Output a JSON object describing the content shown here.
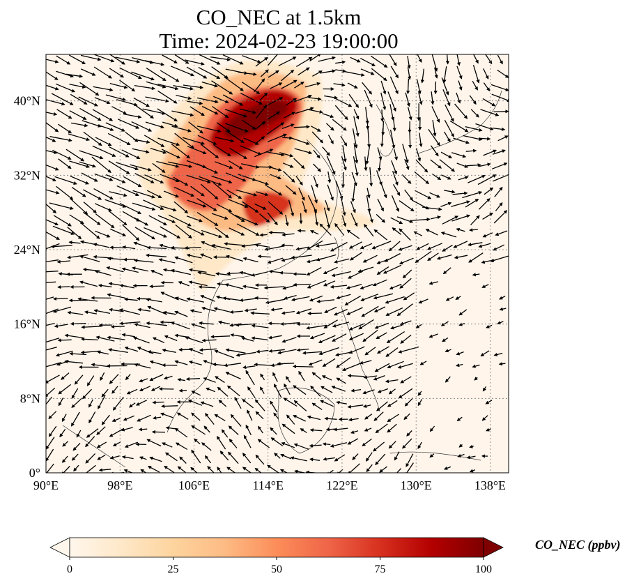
{
  "title_line1": "CO_NEC at 1.5km",
  "title_line2": "Time: 2024-02-23 19:00:00",
  "map": {
    "lon_range": [
      90,
      140
    ],
    "lat_range": [
      0,
      45
    ],
    "x_ticks": [
      "90°E",
      "98°E",
      "106°E",
      "114°E",
      "122°E",
      "130°E",
      "138°E"
    ],
    "y_ticks": [
      "0°",
      "8°N",
      "16°N",
      "24°N",
      "32°N",
      "40°N"
    ],
    "gridlines": "dotted",
    "colormap": "OrRd",
    "background_color": "#fff5eb",
    "vector_color": "#000000"
  },
  "colorbar": {
    "label": "CO_NEC (ppbv)",
    "ticks": [
      "0",
      "25",
      "50",
      "75",
      "100"
    ],
    "range": [
      0,
      100
    ],
    "extend": "both",
    "colors": [
      "#fff7ec",
      "#fee8c8",
      "#fdd49e",
      "#fdbb84",
      "#fc8d59",
      "#ef6548",
      "#d7301f",
      "#b30000",
      "#7f0000"
    ]
  }
}
